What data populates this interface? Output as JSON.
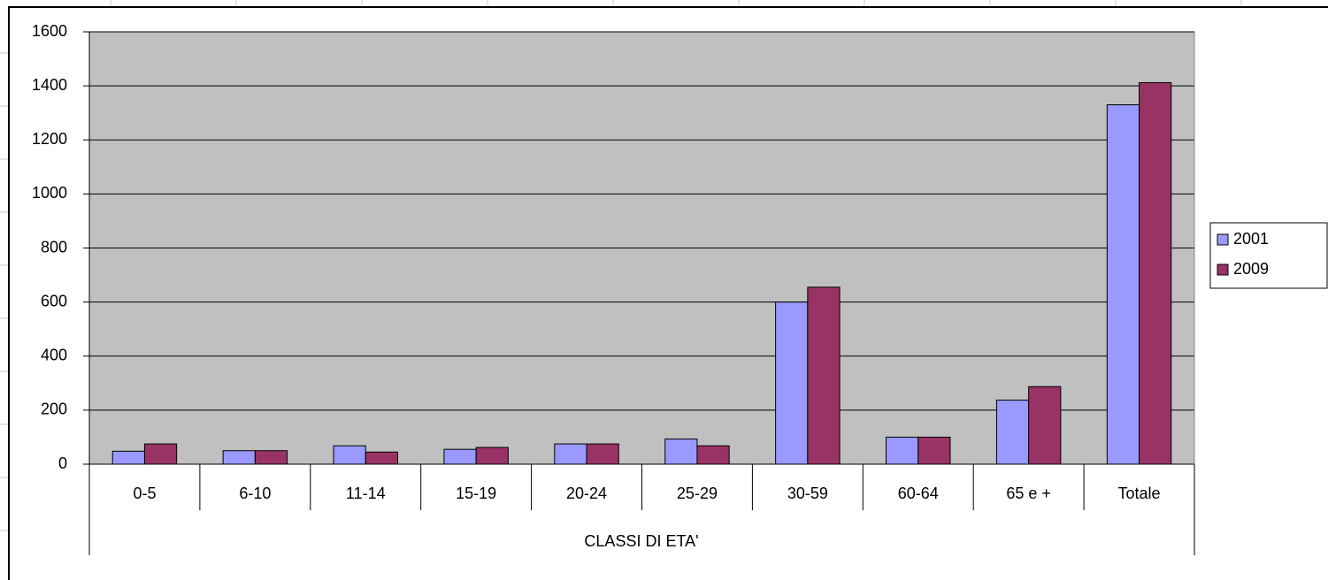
{
  "chart_data": {
    "type": "bar",
    "x_label": "CLASSI DI ETA'",
    "categories": [
      "0-5",
      "6-10",
      "11-14",
      "15-19",
      "20-24",
      "25-29",
      "30-59",
      "60-64",
      "65 e +",
      "Totale"
    ],
    "series": [
      {
        "name": "2001",
        "color": "#9999ff",
        "values": [
          48,
          50,
          68,
          55,
          75,
          93,
          600,
          100,
          237,
          1330
        ]
      },
      {
        "name": "2009",
        "color": "#993366",
        "values": [
          75,
          50,
          45,
          62,
          75,
          68,
          655,
          100,
          287,
          1412
        ]
      }
    ],
    "ylim": [
      0,
      1600
    ],
    "yticks": [
      0,
      200,
      400,
      600,
      800,
      1000,
      1200,
      1400,
      1600
    ],
    "grid": true,
    "legend": "right",
    "plot_background": "#c0c0c0"
  }
}
